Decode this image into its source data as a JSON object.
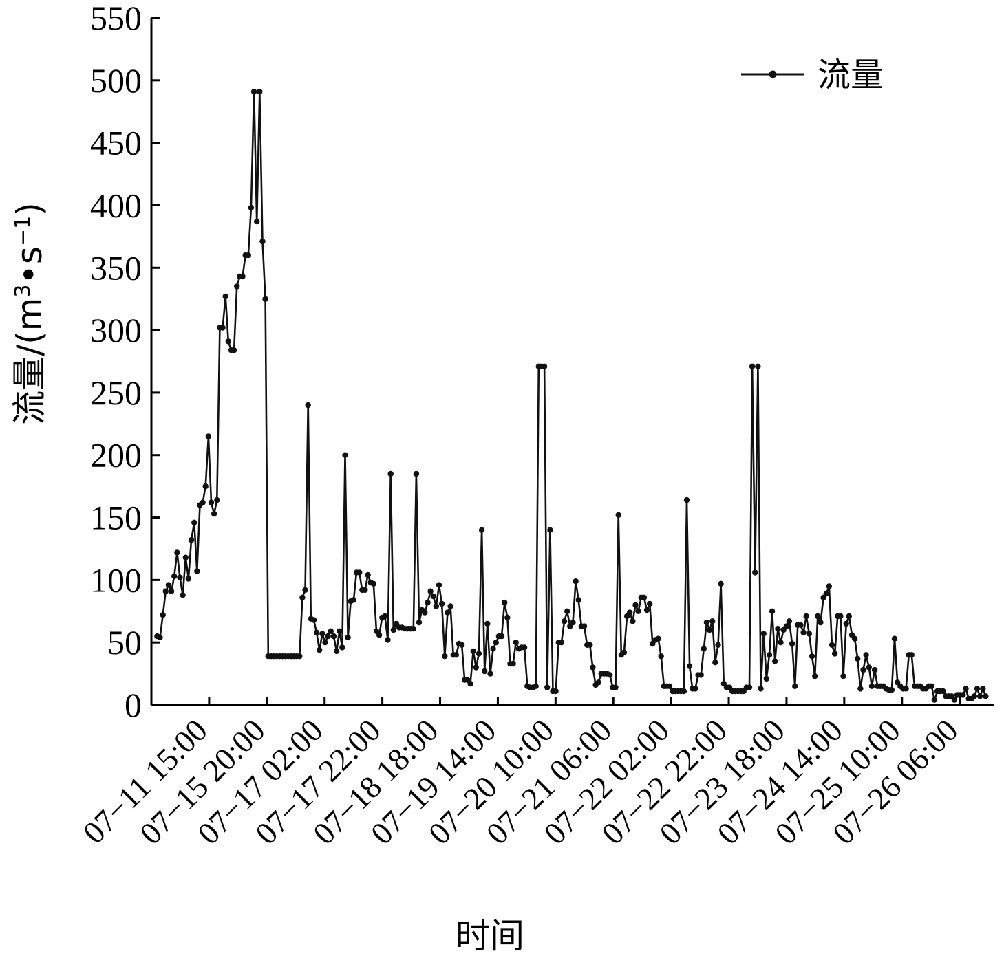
{
  "chart_data": {
    "type": "line",
    "xlabel": "时间",
    "ylabel": "流量/(m³·s⁻¹)",
    "ylabel_parts": {
      "main": "流量/(m",
      "sup1": "3",
      "mid": "•s",
      "sup2": "−1",
      "end": ")"
    },
    "ylim": [
      0,
      550
    ],
    "yticks": [
      "0",
      "50",
      "100",
      "150",
      "200",
      "250",
      "300",
      "350",
      "400",
      "450",
      "500",
      "550"
    ],
    "xlim": [
      0,
      146
    ],
    "x_tick_positions": [
      10,
      20,
      30,
      40,
      50,
      60,
      70,
      80,
      90,
      100,
      110,
      120,
      130,
      140
    ],
    "xtick_labels": [
      "07−11 15:00",
      "07−15 20:00",
      "07−17 02:00",
      "07−17 22:00",
      "07−18 18:00",
      "07−19 14:00",
      "07−20 10:00",
      "07−21 06:00",
      "07−22 02:00",
      "07−22 22:00",
      "07−23 18:00",
      "07−24 14:00",
      "07−25 10:00",
      "07−26 06:00"
    ],
    "grid": false,
    "legend": "top-right",
    "series": [
      {
        "name": "流量",
        "color": "#111111",
        "marker": "circle",
        "values": [
          55,
          54,
          72,
          91,
          96,
          91,
          103,
          122,
          102,
          88,
          118,
          101,
          132,
          146,
          107,
          160,
          162,
          175,
          215,
          162,
          153,
          164,
          302,
          302,
          327,
          291,
          284,
          284,
          335,
          343,
          343,
          360,
          360,
          398,
          491,
          387,
          491,
          371,
          325,
          39,
          39,
          39,
          39,
          39,
          39,
          39,
          39,
          39,
          39,
          39,
          39,
          86,
          92,
          240,
          69,
          68,
          58,
          44,
          57,
          50,
          55,
          59,
          55,
          43,
          59,
          46,
          200,
          54,
          83,
          84,
          106,
          106,
          92,
          92,
          104,
          98,
          97,
          59,
          56,
          70,
          71,
          52,
          185,
          60,
          65,
          62,
          62,
          61,
          61,
          61,
          61,
          185,
          66,
          76,
          74,
          82,
          91,
          87,
          79,
          96,
          81,
          39,
          74,
          79,
          40,
          40,
          49,
          48,
          20,
          20,
          17,
          43,
          30,
          41,
          140,
          27,
          65,
          25,
          45,
          50,
          55,
          55,
          82,
          70,
          33,
          33,
          50,
          45,
          46,
          46,
          15,
          14,
          14,
          15,
          271,
          271,
          271,
          14,
          140,
          11,
          11,
          50,
          50,
          67,
          75,
          63,
          66,
          99,
          84,
          63,
          63,
          48,
          48,
          30,
          16,
          18,
          25,
          25,
          25,
          24,
          14,
          14,
          152,
          40,
          42,
          71,
          74,
          67,
          80,
          75,
          86,
          86,
          76,
          81,
          49,
          52,
          53,
          39,
          15,
          15,
          15,
          11,
          11,
          11,
          11,
          11,
          164,
          31,
          13,
          13,
          24,
          24,
          45,
          66,
          60,
          67,
          34,
          48,
          97,
          17,
          14,
          14,
          11,
          11,
          11,
          11,
          11,
          14,
          14,
          271,
          106,
          271,
          13,
          57,
          21,
          40,
          75,
          35,
          61,
          50,
          60,
          63,
          67,
          49,
          15,
          64,
          64,
          58,
          71,
          57,
          39,
          23,
          71,
          66,
          86,
          89,
          95,
          48,
          41,
          71,
          71,
          23,
          65,
          71,
          56,
          53,
          37,
          13,
          28,
          40,
          30,
          15,
          28,
          15,
          15,
          15,
          13,
          12,
          12,
          53,
          18,
          15,
          13,
          13,
          40,
          40,
          15,
          15,
          15,
          13,
          13,
          15,
          15,
          4,
          11,
          11,
          11,
          7,
          7,
          7,
          4,
          8,
          8,
          8,
          13,
          5,
          5,
          7,
          13,
          7,
          13,
          7
        ]
      }
    ]
  }
}
